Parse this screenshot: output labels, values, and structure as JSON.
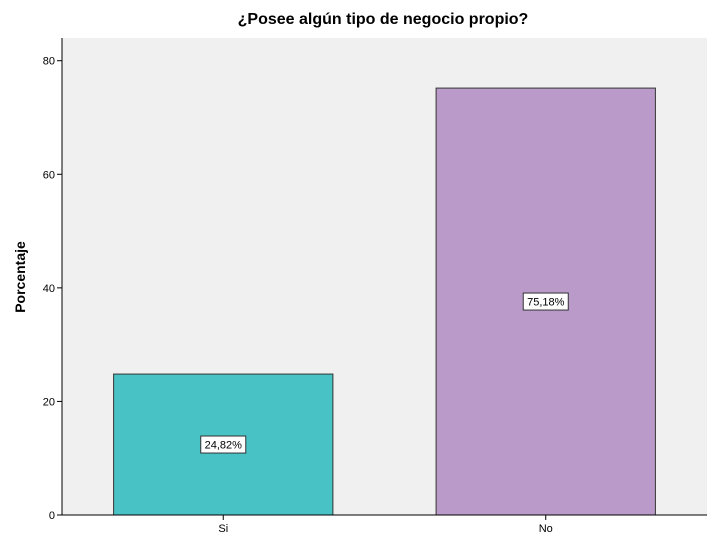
{
  "chart_data": {
    "type": "bar",
    "title": "¿Posee algún tipo de negocio propio?",
    "xlabel": "",
    "ylabel": "Porcentaje",
    "categories": [
      "Si",
      "No"
    ],
    "values": [
      24.82,
      75.18
    ],
    "data_labels": [
      "24,82%",
      "75,18%"
    ],
    "ylim": [
      0,
      84
    ],
    "yticks": [
      0,
      20,
      40,
      60,
      80
    ],
    "grid": false,
    "legend": "none",
    "colors": {
      "bars": [
        "#48c2c4",
        "#b99ac9"
      ],
      "plot_background": "#f0f0f0",
      "bar_outline": "#333333"
    }
  }
}
